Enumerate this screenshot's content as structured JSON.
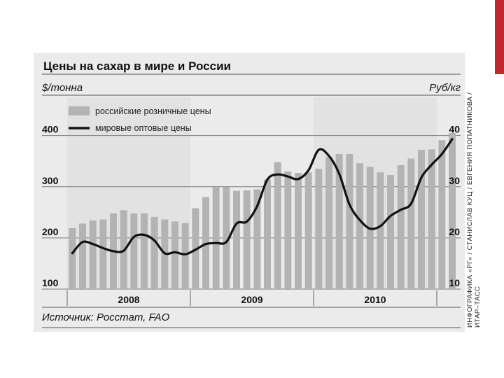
{
  "title": "Цены на сахар в мире и России",
  "unit_left": "$/тонна",
  "unit_right": "Руб/кг",
  "source": "Источник: Росстат, FAO",
  "credit_line1": "ИНФОГРАФИКА «РГ» / СТАНИСЛАВ КУЦ / ЕВГЕНИЯ ПОПАТНИКОВА /",
  "credit_line2": "ИТАР–ТАСС",
  "colors": {
    "bars": "#b3b3b3",
    "line": "#111111",
    "panel": "#ebebeb",
    "accent": "#c0282d"
  },
  "chart_data": {
    "type": "bar+line",
    "title": "Цены на сахар в мире и России",
    "legend": [
      "российские розничные цены",
      "мировые оптовые цены"
    ],
    "legend_position": "top-left",
    "y_left": {
      "label": "$/тонна",
      "ticks": [
        "100",
        "200",
        "300",
        "400"
      ],
      "range": [
        100,
        420
      ]
    },
    "y_right": {
      "label": "Руб/кг",
      "ticks": [
        "10",
        "20",
        "30",
        "40"
      ],
      "range": [
        10,
        42
      ]
    },
    "years": [
      "2008",
      "2009",
      "2010"
    ],
    "months_per_year": 12,
    "series": [
      {
        "name": "российские розничные цены",
        "type": "bar",
        "axis": "right",
        "values": [
          21.9,
          22.8,
          23.4,
          23.6,
          24.8,
          25.4,
          24.8,
          24.8,
          24.1,
          23.6,
          23.2,
          22.9,
          25.8,
          28.0,
          29.9,
          29.9,
          29.2,
          29.3,
          29.5,
          31.4,
          34.8,
          33.0,
          32.7,
          32.8,
          33.5,
          35.8,
          36.4,
          36.4,
          34.6,
          33.9,
          32.8,
          32.3,
          34.2,
          35.5,
          37.2,
          37.3,
          39.1,
          40.5
        ]
      },
      {
        "name": "мировые оптовые цены",
        "type": "line",
        "axis": "left",
        "values": [
          170,
          192,
          188,
          180,
          174,
          175,
          202,
          206,
          195,
          170,
          172,
          168,
          177,
          188,
          190,
          192,
          228,
          232,
          262,
          314,
          324,
          320,
          315,
          332,
          372,
          360,
          325,
          265,
          235,
          218,
          223,
          243,
          255,
          267,
          318,
          343,
          364,
          393
        ]
      }
    ]
  }
}
